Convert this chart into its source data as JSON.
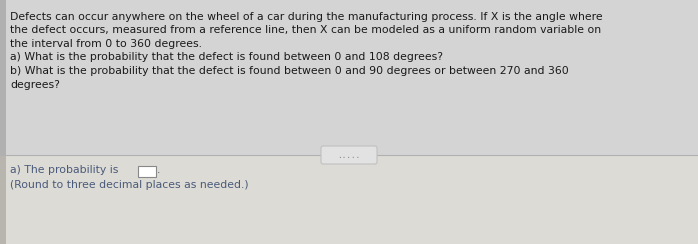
{
  "bg_top": "#d8d8d8",
  "bg_bottom": "#e8e6e0",
  "text_color_top": "#1a1a1a",
  "text_color_bottom": "#4a5a7a",
  "divider_color": "#b0b0b0",
  "dots_bg": "#e0e0e0",
  "dots_color": "#888888",
  "input_box_color": "#ffffff",
  "input_box_edge": "#888888",
  "main_text_line1": "Defects can occur anywhere on the wheel of a car during the manufacturing process. If X is the angle where",
  "main_text_line2": "the defect occurs, measured from a reference line, then X can be modeled as a uniform random variable on",
  "main_text_line3": "the interval from 0 to 360 degrees.",
  "main_text_line4": "a) What is the probability that the defect is found between 0 and 108 degrees?",
  "main_text_line5": "b) What is the probability that the defect is found between 0 and 90 degrees or between 270 and 360",
  "main_text_line6": "degrees?",
  "answer_line1": "a) The probability is",
  "answer_period": ".",
  "answer_line2": "(Round to three decimal places as needed.)",
  "dots": "....."
}
